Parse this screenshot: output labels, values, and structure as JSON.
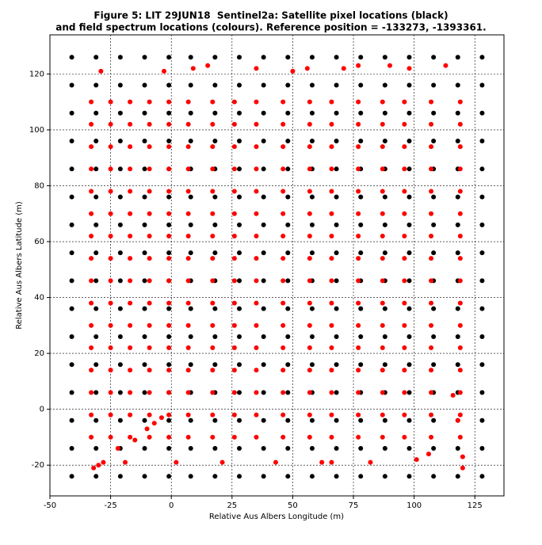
{
  "chart_data": {
    "type": "scatter",
    "title": [
      "Figure 5: LIT 29JUN18  Sentinel2a: Satellite pixel locations (black)",
      "and field spectrum locations (colours). Reference position = -133273, -1393361."
    ],
    "x_label": "Relative Aus Albers Longitude (m)",
    "y_label": "Relative Aus Albers Latitude (m)",
    "xlim": [
      -50,
      137
    ],
    "ylim": [
      -31,
      134
    ],
    "xticks": [
      -50,
      -25,
      0,
      25,
      50,
      75,
      100,
      125
    ],
    "yticks": [
      -20,
      0,
      20,
      40,
      60,
      80,
      100,
      120
    ],
    "grid": true,
    "series": [
      {
        "color": "#000000",
        "x": [
          -41,
          -31,
          -21,
          -11,
          -1,
          8,
          18,
          28,
          38,
          48,
          58,
          68,
          78,
          88,
          98,
          108,
          118,
          128,
          -41,
          -31,
          -21,
          -11,
          -1,
          8,
          18,
          28,
          38,
          48,
          58,
          68,
          78,
          88,
          98,
          108,
          118,
          128,
          -41,
          -31,
          -21,
          -11,
          -1,
          8,
          18,
          28,
          38,
          48,
          58,
          68,
          78,
          88,
          98,
          108,
          118,
          128,
          -41,
          -31,
          -21,
          -11,
          -1,
          8,
          18,
          28,
          38,
          48,
          58,
          68,
          78,
          88,
          98,
          108,
          118,
          128,
          -41,
          -31,
          -21,
          -11,
          -1,
          8,
          18,
          28,
          38,
          48,
          58,
          68,
          78,
          88,
          98,
          108,
          118,
          128,
          -41,
          -31,
          -21,
          -11,
          -1,
          8,
          18,
          28,
          38,
          48,
          58,
          68,
          78,
          88,
          98,
          108,
          118,
          128,
          -41,
          -31,
          -21,
          -11,
          -1,
          8,
          18,
          28,
          38,
          48,
          58,
          68,
          78,
          88,
          98,
          108,
          118,
          128,
          -41,
          -31,
          -21,
          -11,
          -1,
          8,
          18,
          28,
          38,
          48,
          58,
          68,
          78,
          88,
          98,
          108,
          118,
          128,
          -41,
          -31,
          -21,
          -11,
          -1,
          8,
          18,
          28,
          38,
          48,
          58,
          68,
          78,
          88,
          98,
          108,
          118,
          128,
          -41,
          -31,
          -21,
          -11,
          -1,
          8,
          18,
          28,
          38,
          48,
          58,
          68,
          78,
          88,
          98,
          108,
          118,
          128,
          -41,
          -31,
          -21,
          -11,
          -1,
          8,
          18,
          28,
          38,
          48,
          58,
          68,
          78,
          88,
          98,
          108,
          118,
          128,
          -41,
          -31,
          -21,
          -11,
          -1,
          8,
          18,
          28,
          38,
          48,
          58,
          68,
          78,
          88,
          98,
          108,
          118,
          128,
          -41,
          -31,
          -21,
          -11,
          -1,
          8,
          18,
          28,
          38,
          48,
          58,
          68,
          78,
          88,
          98,
          108,
          118,
          128,
          -41,
          -31,
          -21,
          -11,
          -1,
          8,
          18,
          28,
          38,
          48,
          58,
          68,
          78,
          88,
          98,
          108,
          118,
          128,
          -41,
          -31,
          -21,
          -11,
          -1,
          8,
          18,
          28,
          38,
          48,
          58,
          68,
          78,
          88,
          98,
          108,
          118,
          128,
          -41,
          -31,
          -21,
          -11,
          -1,
          8,
          18,
          28,
          38,
          48,
          58,
          68,
          78,
          88,
          98,
          108,
          118,
          128
        ],
        "y": [
          -24,
          -24,
          -24,
          -24,
          -24,
          -24,
          -24,
          -24,
          -24,
          -24,
          -24,
          -24,
          -24,
          -24,
          -24,
          -24,
          -24,
          -24,
          -14,
          -14,
          -14,
          -14,
          -14,
          -14,
          -14,
          -14,
          -14,
          -14,
          -14,
          -14,
          -14,
          -14,
          -14,
          -14,
          -14,
          -14,
          -4,
          -4,
          -4,
          -4,
          -4,
          -4,
          -4,
          -4,
          -4,
          -4,
          -4,
          -4,
          -4,
          -4,
          -4,
          -4,
          -4,
          -4,
          6,
          6,
          6,
          6,
          6,
          6,
          6,
          6,
          6,
          6,
          6,
          6,
          6,
          6,
          6,
          6,
          6,
          6,
          16,
          16,
          16,
          16,
          16,
          16,
          16,
          16,
          16,
          16,
          16,
          16,
          16,
          16,
          16,
          16,
          16,
          16,
          26,
          26,
          26,
          26,
          26,
          26,
          26,
          26,
          26,
          26,
          26,
          26,
          26,
          26,
          26,
          26,
          26,
          26,
          36,
          36,
          36,
          36,
          36,
          36,
          36,
          36,
          36,
          36,
          36,
          36,
          36,
          36,
          36,
          36,
          36,
          36,
          46,
          46,
          46,
          46,
          46,
          46,
          46,
          46,
          46,
          46,
          46,
          46,
          46,
          46,
          46,
          46,
          46,
          46,
          56,
          56,
          56,
          56,
          56,
          56,
          56,
          56,
          56,
          56,
          56,
          56,
          56,
          56,
          56,
          56,
          56,
          56,
          66,
          66,
          66,
          66,
          66,
          66,
          66,
          66,
          66,
          66,
          66,
          66,
          66,
          66,
          66,
          66,
          66,
          66,
          76,
          76,
          76,
          76,
          76,
          76,
          76,
          76,
          76,
          76,
          76,
          76,
          76,
          76,
          76,
          76,
          76,
          76,
          86,
          86,
          86,
          86,
          86,
          86,
          86,
          86,
          86,
          86,
          86,
          86,
          86,
          86,
          86,
          86,
          86,
          86,
          96,
          96,
          96,
          96,
          96,
          96,
          96,
          96,
          96,
          96,
          96,
          96,
          96,
          96,
          96,
          96,
          96,
          96,
          106,
          106,
          106,
          106,
          106,
          106,
          106,
          106,
          106,
          106,
          106,
          106,
          106,
          106,
          106,
          106,
          106,
          106,
          116,
          116,
          116,
          116,
          116,
          116,
          116,
          116,
          116,
          116,
          116,
          116,
          116,
          116,
          116,
          116,
          116,
          116,
          126,
          126,
          126,
          126,
          126,
          126,
          126,
          126,
          126,
          126,
          126,
          126,
          126,
          126,
          126,
          126,
          126,
          126
        ]
      },
      {
        "color": "#ff0000",
        "x": [
          -33,
          -33,
          -33,
          -33,
          -33,
          -33,
          -33,
          -33,
          -33,
          -33,
          -33,
          -33,
          -33,
          -33,
          -33,
          -33,
          -25,
          -25,
          -25,
          -25,
          -25,
          -25,
          -25,
          -25,
          -25,
          -25,
          -25,
          -25,
          -25,
          -25,
          -25,
          -25,
          -17,
          -17,
          -17,
          -17,
          -17,
          -17,
          -17,
          -17,
          -17,
          -17,
          -17,
          -17,
          -17,
          -17,
          -17,
          -17,
          -9,
          -9,
          -9,
          -9,
          -9,
          -9,
          -9,
          -9,
          -9,
          -9,
          -9,
          -9,
          -9,
          -9,
          -9,
          -9,
          -1,
          -1,
          -1,
          -1,
          -1,
          -1,
          -1,
          -1,
          -1,
          -1,
          -1,
          -1,
          -1,
          -1,
          -1,
          -1,
          7,
          7,
          7,
          7,
          7,
          7,
          7,
          7,
          7,
          7,
          7,
          7,
          7,
          7,
          7,
          7,
          17,
          17,
          17,
          17,
          17,
          17,
          17,
          17,
          17,
          17,
          17,
          17,
          17,
          17,
          17,
          17,
          26,
          26,
          26,
          26,
          26,
          26,
          26,
          26,
          26,
          26,
          26,
          26,
          26,
          26,
          26,
          26,
          35,
          35,
          35,
          35,
          35,
          35,
          35,
          35,
          35,
          35,
          35,
          35,
          35,
          35,
          35,
          35,
          46,
          46,
          46,
          46,
          46,
          46,
          46,
          46,
          46,
          46,
          46,
          46,
          46,
          46,
          46,
          46,
          57,
          57,
          57,
          57,
          57,
          57,
          57,
          57,
          57,
          57,
          57,
          57,
          57,
          57,
          57,
          57,
          66,
          66,
          66,
          66,
          66,
          66,
          66,
          66,
          66,
          66,
          66,
          66,
          66,
          66,
          66,
          66,
          77,
          77,
          77,
          77,
          77,
          77,
          77,
          77,
          77,
          77,
          77,
          77,
          77,
          77,
          77,
          77,
          87,
          87,
          87,
          87,
          87,
          87,
          87,
          87,
          87,
          87,
          87,
          87,
          87,
          87,
          87,
          87,
          96,
          96,
          96,
          96,
          96,
          96,
          96,
          96,
          96,
          96,
          96,
          96,
          96,
          96,
          96,
          96,
          107,
          107,
          107,
          107,
          107,
          107,
          107,
          107,
          107,
          107,
          107,
          107,
          107,
          107,
          107,
          107,
          119,
          119,
          119,
          119,
          119,
          119,
          119,
          119,
          119,
          119,
          119,
          119,
          119,
          119,
          119,
          119,
          -32,
          -30,
          -28,
          -22,
          -19,
          -15,
          -10,
          -7,
          -4,
          2,
          21,
          43,
          62,
          66,
          82,
          101,
          106,
          120,
          120,
          116,
          118,
          -29,
          -3,
          9,
          15,
          35,
          50,
          56,
          71,
          77,
          90,
          98,
          113
        ],
        "y": [
          -10,
          -2,
          6,
          14,
          22,
          30,
          38,
          46,
          54,
          62,
          70,
          78,
          86,
          94,
          102,
          110,
          -10,
          -2,
          6,
          14,
          22,
          30,
          38,
          46,
          54,
          62,
          70,
          78,
          86,
          94,
          102,
          110,
          -10,
          -2,
          6,
          14,
          22,
          30,
          38,
          46,
          54,
          62,
          70,
          78,
          86,
          94,
          102,
          110,
          -10,
          -2,
          6,
          14,
          22,
          30,
          38,
          46,
          54,
          62,
          70,
          78,
          86,
          94,
          102,
          110,
          -10,
          -2,
          6,
          14,
          22,
          30,
          38,
          46,
          54,
          62,
          70,
          78,
          86,
          94,
          102,
          110,
          -10,
          -2,
          6,
          14,
          22,
          30,
          38,
          46,
          54,
          62,
          70,
          78,
          86,
          94,
          102,
          110,
          -10,
          -2,
          6,
          14,
          22,
          30,
          38,
          46,
          54,
          62,
          70,
          78,
          86,
          94,
          102,
          110,
          -10,
          -2,
          6,
          14,
          22,
          30,
          38,
          46,
          54,
          62,
          70,
          78,
          86,
          94,
          102,
          110,
          -10,
          -2,
          6,
          14,
          22,
          30,
          38,
          46,
          54,
          62,
          70,
          78,
          86,
          94,
          102,
          110,
          -10,
          -2,
          6,
          14,
          22,
          30,
          38,
          46,
          54,
          62,
          70,
          78,
          86,
          94,
          102,
          110,
          -10,
          -2,
          6,
          14,
          22,
          30,
          38,
          46,
          54,
          62,
          70,
          78,
          86,
          94,
          102,
          110,
          -10,
          -2,
          6,
          14,
          22,
          30,
          38,
          46,
          54,
          62,
          70,
          78,
          86,
          94,
          102,
          110,
          -10,
          -2,
          6,
          14,
          22,
          30,
          38,
          46,
          54,
          62,
          70,
          78,
          86,
          94,
          102,
          110,
          -10,
          -2,
          6,
          14,
          22,
          30,
          38,
          46,
          54,
          62,
          70,
          78,
          86,
          94,
          102,
          110,
          -10,
          -2,
          6,
          14,
          22,
          30,
          38,
          46,
          54,
          62,
          70,
          78,
          86,
          94,
          102,
          110,
          -10,
          -2,
          6,
          14,
          22,
          30,
          38,
          46,
          54,
          62,
          70,
          78,
          86,
          94,
          102,
          110,
          -10,
          -2,
          6,
          14,
          22,
          30,
          38,
          46,
          54,
          62,
          70,
          78,
          86,
          94,
          102,
          110,
          -21,
          -20,
          -19,
          -14,
          -19,
          -11,
          -7,
          -5,
          -3,
          -19,
          -19,
          -19,
          -19,
          -19,
          -19,
          -18,
          -16,
          -17,
          -21,
          5,
          -4,
          121,
          121,
          122,
          123,
          122,
          121,
          122,
          122,
          123,
          123,
          122,
          123
        ]
      }
    ]
  }
}
